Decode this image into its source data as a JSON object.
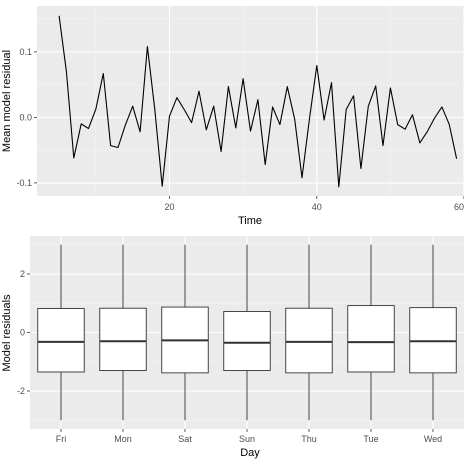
{
  "colors": {
    "panel_background": "#ebebeb",
    "grid_major": "#ffffff",
    "grid_minor": "#f5f5f5",
    "line": "#000000",
    "box_fill": "#ffffff",
    "box_stroke": "#333333",
    "tick_text": "#4d4d4d"
  },
  "chart_data": [
    {
      "type": "line",
      "title": "",
      "xlabel": "Time",
      "ylabel": "Mean model residual",
      "xlim": [
        2,
        60
      ],
      "ylim": [
        -0.12,
        0.17
      ],
      "x_ticks": [
        20,
        40,
        60
      ],
      "y_ticks": [
        -0.1,
        0.0,
        0.1
      ],
      "y_tick_labels": [
        "-0.1",
        "0.0",
        "0.1"
      ],
      "grid": true,
      "series": [
        {
          "x": [
            5,
            6,
            7,
            8,
            9,
            10,
            11,
            12,
            13,
            14,
            15,
            16,
            17,
            18,
            19,
            20,
            21,
            22,
            23,
            24,
            25,
            26,
            27,
            28,
            29,
            30,
            31,
            32,
            33,
            34,
            35,
            36,
            37,
            38,
            39,
            40,
            41,
            42,
            43,
            44,
            45,
            46,
            47,
            48,
            49,
            50,
            51,
            52,
            53,
            54,
            55,
            56,
            57,
            58,
            59
          ],
          "values": [
            0.155,
            0.07,
            -0.062,
            -0.01,
            -0.017,
            0.013,
            0.067,
            -0.043,
            -0.046,
            -0.012,
            0.017,
            -0.022,
            0.108,
            0.012,
            -0.105,
            0.002,
            0.03,
            0.012,
            -0.008,
            0.04,
            -0.019,
            0.017,
            -0.052,
            0.047,
            -0.016,
            0.059,
            -0.021,
            0.027,
            -0.072,
            0.016,
            -0.011,
            0.047,
            -0.003,
            -0.092,
            -0.003,
            0.079,
            -0.004,
            0.053,
            -0.106,
            0.012,
            0.033,
            -0.078,
            0.017,
            0.048,
            -0.043,
            0.045,
            -0.011,
            -0.018,
            0.004,
            -0.039,
            -0.022,
            -0.001,
            0.016,
            -0.011,
            -0.063
          ]
        }
      ]
    },
    {
      "type": "box",
      "title": "",
      "xlabel": "Day",
      "ylabel": "Model residuals",
      "ylim": [
        -3.3,
        3.3
      ],
      "y_ticks": [
        -2,
        0,
        2
      ],
      "y_tick_labels": [
        "-2",
        "0",
        "2"
      ],
      "grid": true,
      "categories": [
        "Fri",
        "Mon",
        "Sat",
        "Sun",
        "Thu",
        "Tue",
        "Wed"
      ],
      "boxes": [
        {
          "min": -3.0,
          "q1": -1.35,
          "median": -0.32,
          "q3": 0.82,
          "max": 3.0
        },
        {
          "min": -3.0,
          "q1": -1.3,
          "median": -0.3,
          "q3": 0.83,
          "max": 3.0
        },
        {
          "min": -3.0,
          "q1": -1.38,
          "median": -0.27,
          "q3": 0.87,
          "max": 3.0
        },
        {
          "min": -3.0,
          "q1": -1.3,
          "median": -0.35,
          "q3": 0.72,
          "max": 3.0
        },
        {
          "min": -3.0,
          "q1": -1.38,
          "median": -0.32,
          "q3": 0.83,
          "max": 3.0
        },
        {
          "min": -3.0,
          "q1": -1.35,
          "median": -0.33,
          "q3": 0.92,
          "max": 3.0
        },
        {
          "min": -3.0,
          "q1": -1.38,
          "median": -0.3,
          "q3": 0.85,
          "max": 3.0
        }
      ]
    }
  ]
}
